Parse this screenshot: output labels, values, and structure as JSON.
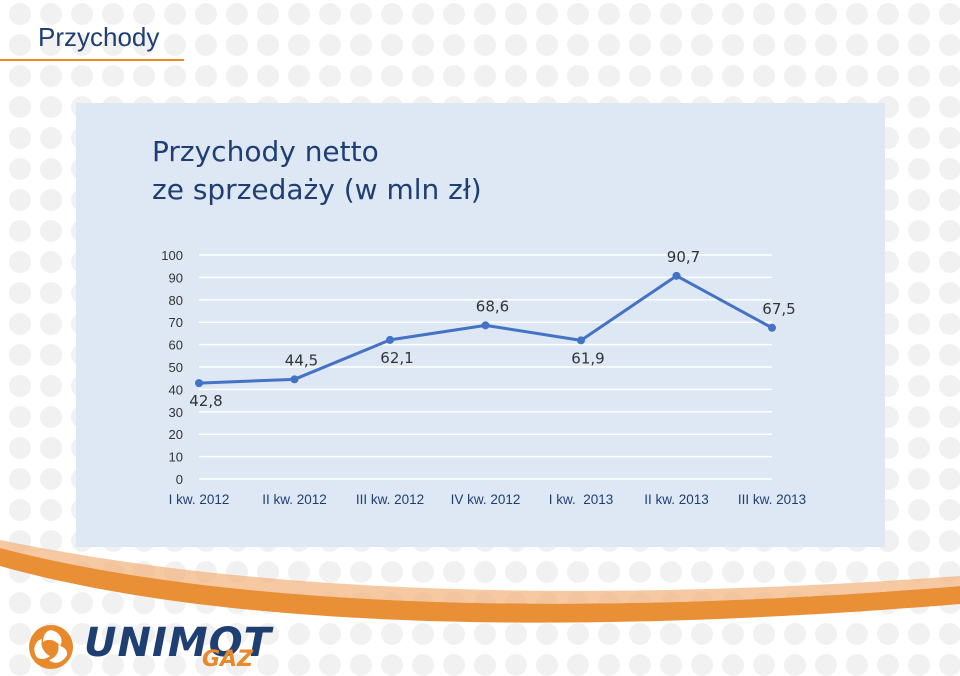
{
  "slide": {
    "title": "Przychody"
  },
  "brand": {
    "name": "UNIMOT",
    "sub": "GAZ",
    "accent": "#e8892b",
    "navy": "#1f3f73"
  },
  "chart_data": {
    "type": "line",
    "title_lines": [
      "Przychody netto",
      "ze sprzedaży (w mln zł)"
    ],
    "categories": [
      "I kw. 2012",
      "II kw. 2012",
      "III kw. 2012",
      "IV kw. 2012",
      "I kw.  2013",
      "II kw. 2013",
      "III kw. 2013"
    ],
    "series": [
      {
        "values": [
          42.8,
          44.5,
          62.1,
          68.6,
          61.9,
          90.7,
          67.5
        ],
        "labels": [
          "42,8",
          "44,5",
          "62,1",
          "68,6",
          "61,9",
          "90,7",
          "67,5"
        ],
        "label_position": [
          "below",
          "above",
          "below",
          "above",
          "below",
          "above",
          "above"
        ],
        "color": "#4472c4"
      }
    ],
    "yticks": [
      0,
      10,
      20,
      30,
      40,
      50,
      60,
      70,
      80,
      90,
      100
    ],
    "ylim": [
      0,
      100
    ],
    "grid": true,
    "legend": "none"
  }
}
